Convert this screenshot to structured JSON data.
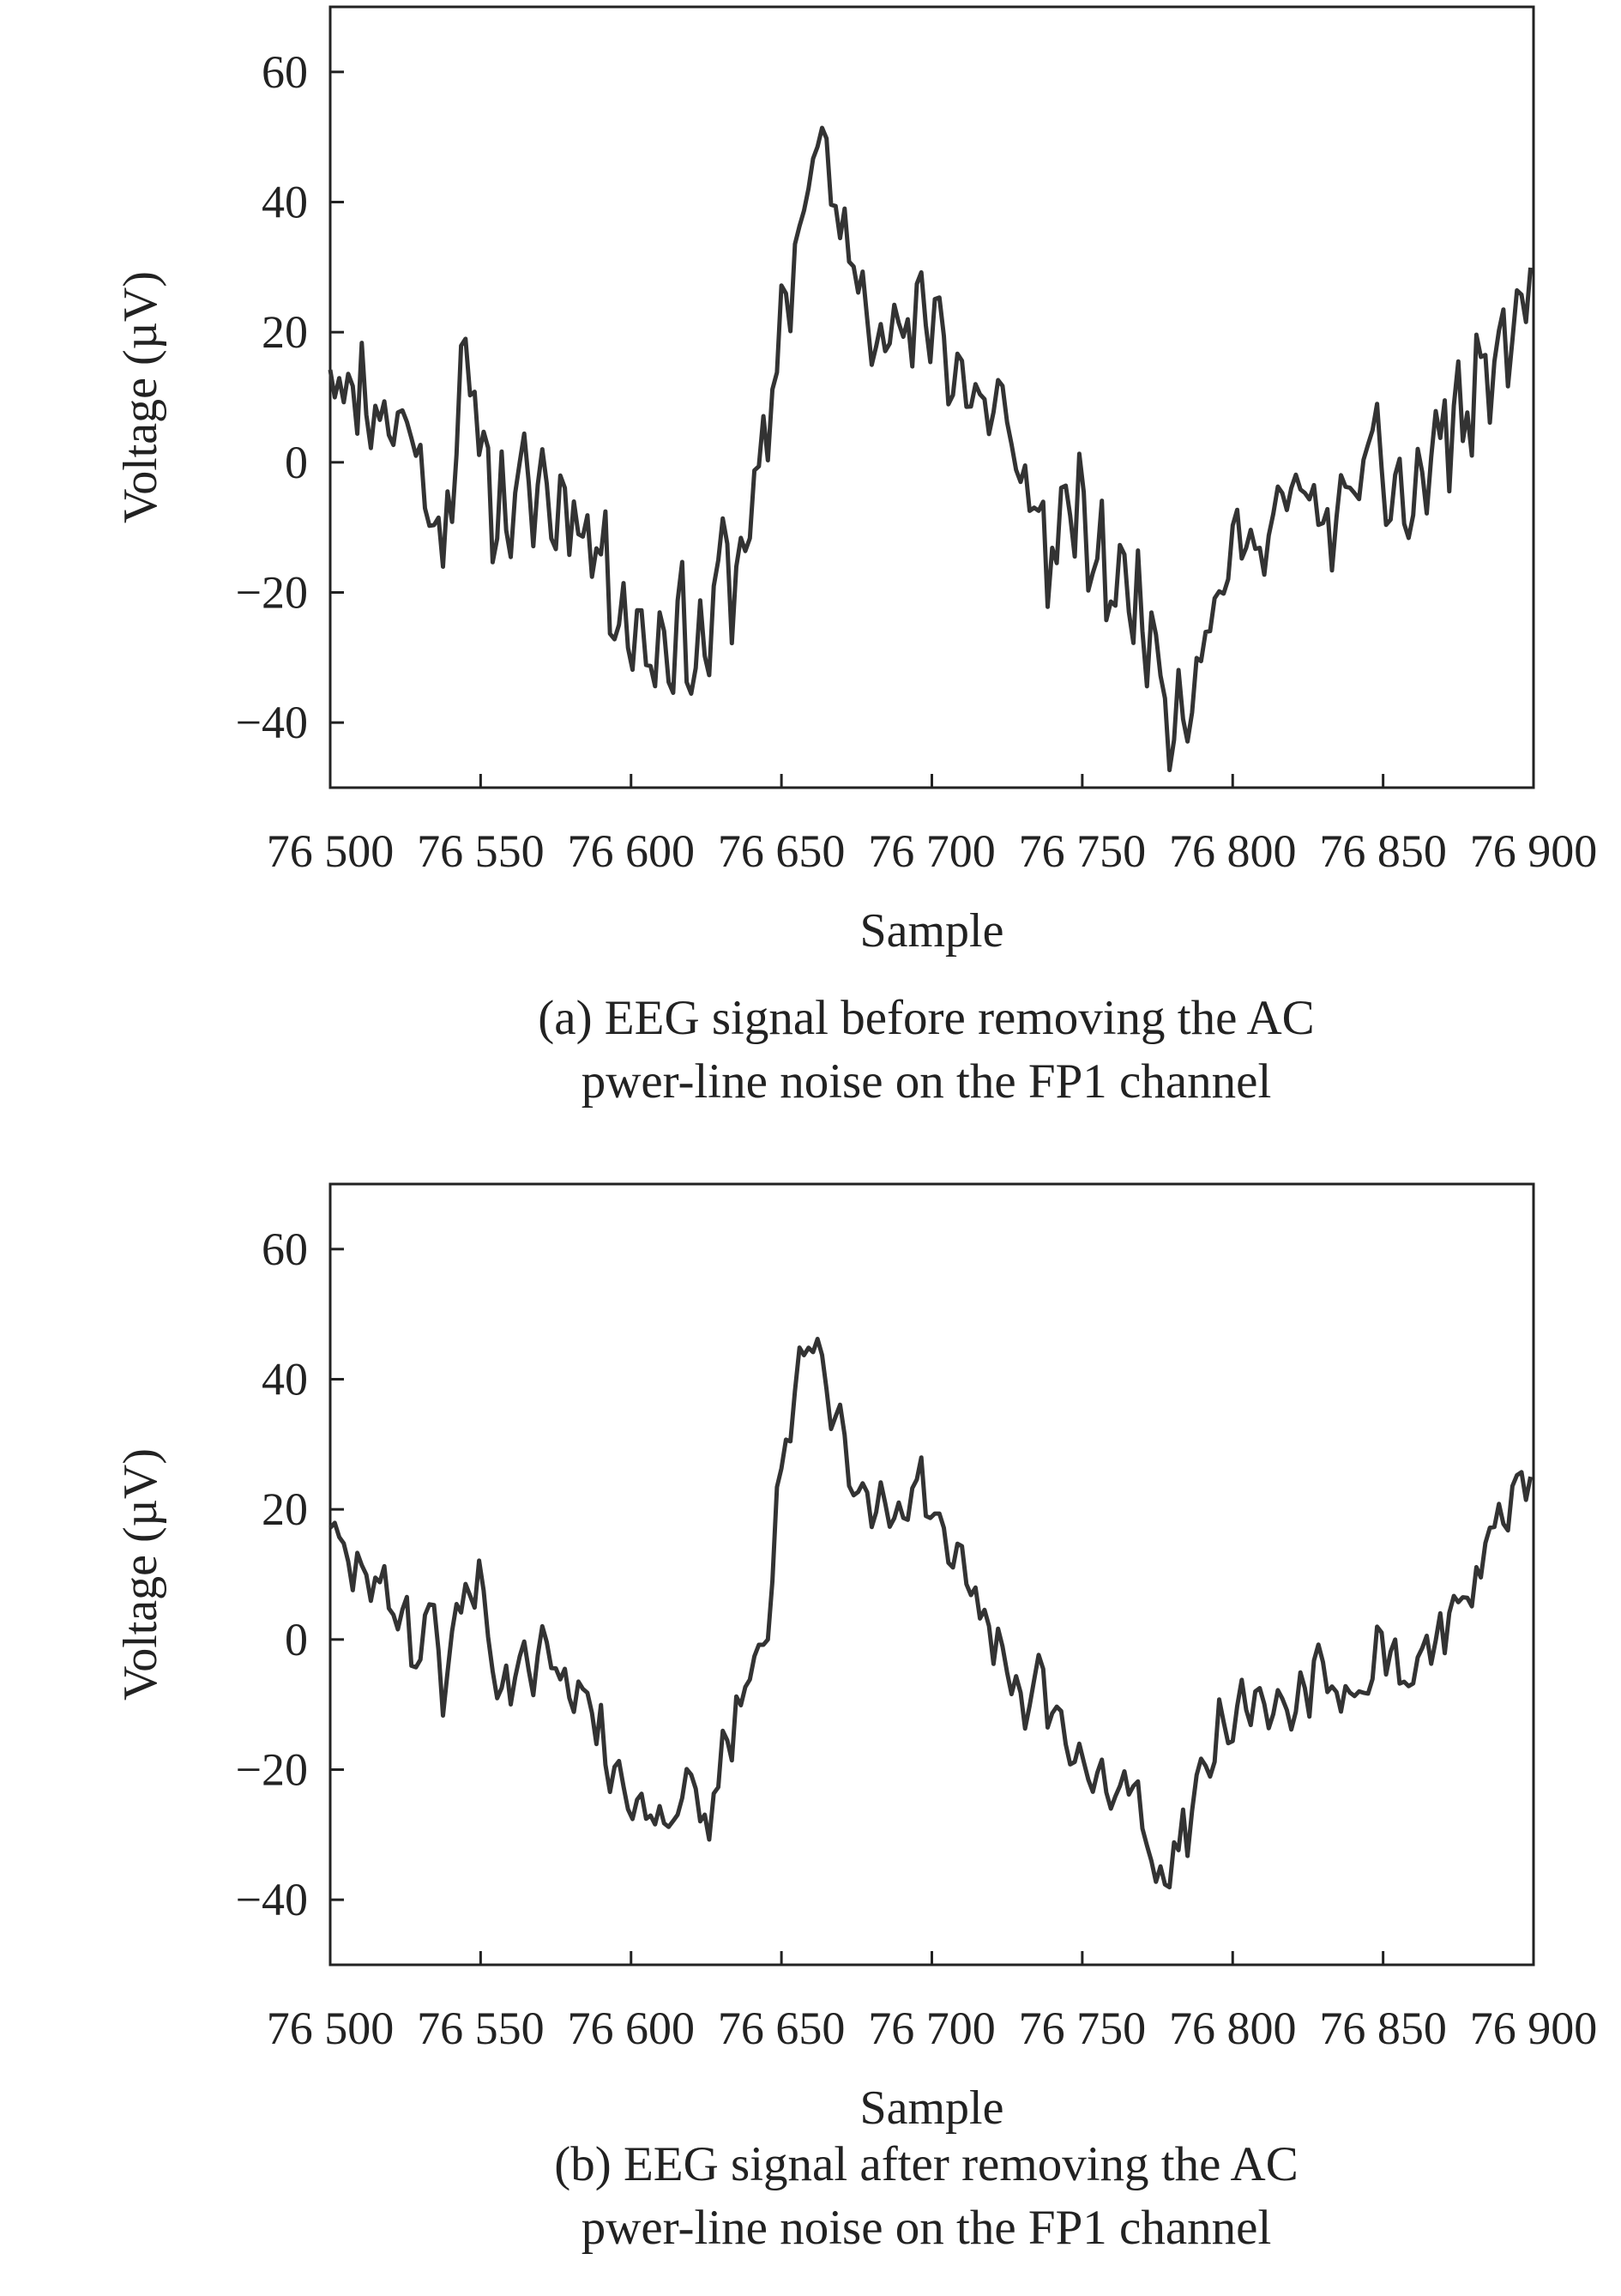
{
  "chart_data": [
    {
      "type": "line",
      "xlabel": "Sample",
      "ylabel": "Voltage (µV)",
      "xlim": [
        76500,
        76900
      ],
      "ylim": [
        -50,
        70
      ],
      "xticks": [
        76500,
        76550,
        76600,
        76650,
        76700,
        76750,
        76800,
        76850,
        76900
      ],
      "xtick_labels": [
        "76 500",
        "76 550",
        "76 600",
        "76 650",
        "76 700",
        "76 750",
        "76 800",
        "76 850",
        "76 900"
      ],
      "yticks": [
        -40,
        -20,
        0,
        20,
        40,
        60
      ],
      "ytick_labels": [
        "−40",
        "−20",
        "0",
        "20",
        "40",
        "60"
      ],
      "caption_line1": "(a) EEG signal before removing the AC",
      "caption_line2": "pwer-line noise on the FP1 channel",
      "color": "#333333",
      "noise": 7,
      "series": [
        {
          "x": [
            76500,
            76505,
            76510,
            76515,
            76520,
            76525,
            76530,
            76532,
            76535,
            76537,
            76540,
            76545,
            76550,
            76555,
            76560,
            76565,
            76570,
            76575,
            76580,
            76585,
            76590,
            76595,
            76600,
            76605,
            76610,
            76615,
            76620,
            76625,
            76630,
            76635,
            76640,
            76645,
            76648,
            76652,
            76656,
            76660,
            76665,
            76670,
            76675,
            76680,
            76685,
            76690,
            76695,
            76700,
            76705,
            76710,
            76715,
            76720,
            76725,
            76730,
            76735,
            76740,
            76745,
            76750,
            76755,
            76760,
            76765,
            76770,
            76775,
            76780,
            76785,
            76790,
            76795,
            76800,
            76805,
            76810,
            76815,
            76820,
            76825,
            76830,
            76835,
            76840,
            76845,
            76850,
            76855,
            76860,
            76865,
            76870,
            76875,
            76880,
            76885,
            76890,
            76895,
            76900
          ],
          "y": [
            20,
            10,
            12,
            8,
            7,
            5,
            5,
            -20,
            5,
            -18,
            0,
            12,
            5,
            -7,
            -8,
            -5,
            -3,
            -8,
            -5,
            -10,
            -15,
            -20,
            -25,
            -28,
            -28,
            -25,
            -28,
            -30,
            -15,
            -18,
            -5,
            -2,
            15,
            28,
            35,
            48,
            45,
            35,
            28,
            25,
            22,
            18,
            20,
            25,
            18,
            12,
            10,
            8,
            5,
            -2,
            -8,
            -15,
            -8,
            -10,
            -15,
            -18,
            -20,
            -22,
            -30,
            -38,
            -35,
            -28,
            -20,
            -15,
            -12,
            -10,
            -8,
            -7,
            -5,
            -10,
            -8,
            -5,
            0,
            -2,
            -5,
            -8,
            0,
            5,
            7,
            8,
            15,
            18,
            22,
            28
          ]
        }
      ]
    },
    {
      "type": "line",
      "xlabel": "Sample",
      "ylabel": "Voltage (µV)",
      "xlim": [
        76500,
        76900
      ],
      "ylim": [
        -50,
        70
      ],
      "xticks": [
        76500,
        76550,
        76600,
        76650,
        76700,
        76750,
        76800,
        76850,
        76900
      ],
      "xtick_labels": [
        "76 500",
        "76 550",
        "76 600",
        "76 650",
        "76 700",
        "76 750",
        "76 800",
        "76 850",
        "76 900"
      ],
      "yticks": [
        -40,
        -20,
        0,
        20,
        40,
        60
      ],
      "ytick_labels": [
        "−40",
        "−20",
        "0",
        "20",
        "40",
        "60"
      ],
      "caption_line1": "(b) EEG signal after removing the AC",
      "caption_line2": "pwer-line noise on the FP1 channel",
      "color": "#333333",
      "noise": 3.5,
      "series": [
        {
          "x": [
            76500,
            76505,
            76510,
            76515,
            76520,
            76525,
            76530,
            76535,
            76537,
            76540,
            76545,
            76550,
            76555,
            76560,
            76565,
            76570,
            76575,
            76580,
            76585,
            76590,
            76595,
            76600,
            76605,
            76610,
            76615,
            76620,
            76625,
            76630,
            76635,
            76640,
            76645,
            76648,
            76652,
            76656,
            76660,
            76665,
            76670,
            76675,
            76680,
            76685,
            76690,
            76695,
            76700,
            76705,
            76710,
            76715,
            76720,
            76725,
            76730,
            76735,
            76740,
            76745,
            76750,
            76755,
            76760,
            76765,
            76770,
            76775,
            76780,
            76785,
            76790,
            76795,
            76800,
            76805,
            76810,
            76815,
            76820,
            76825,
            76830,
            76835,
            76840,
            76845,
            76850,
            76855,
            76860,
            76865,
            76870,
            76875,
            76880,
            76885,
            76890,
            76895,
            76900
          ],
          "y": [
            20,
            10,
            12,
            8,
            5,
            5,
            -5,
            10,
            -13,
            0,
            8,
            8,
            -5,
            -8,
            -5,
            -3,
            -5,
            -5,
            -10,
            -15,
            -22,
            -25,
            -27,
            -28,
            -25,
            -22,
            -30,
            -20,
            -12,
            -5,
            0,
            20,
            30,
            40,
            50,
            38,
            32,
            25,
            22,
            20,
            20,
            25,
            18,
            12,
            10,
            5,
            0,
            -5,
            -12,
            -5,
            -10,
            -17,
            -20,
            -22,
            -25,
            -20,
            -28,
            -37,
            -33,
            -28,
            -20,
            -15,
            -12,
            -10,
            -10,
            -10,
            -10,
            -8,
            -5,
            -10,
            -8,
            -5,
            -2,
            -5,
            -8,
            0,
            2,
            5,
            8,
            15,
            18,
            22,
            25
          ]
        }
      ]
    }
  ]
}
